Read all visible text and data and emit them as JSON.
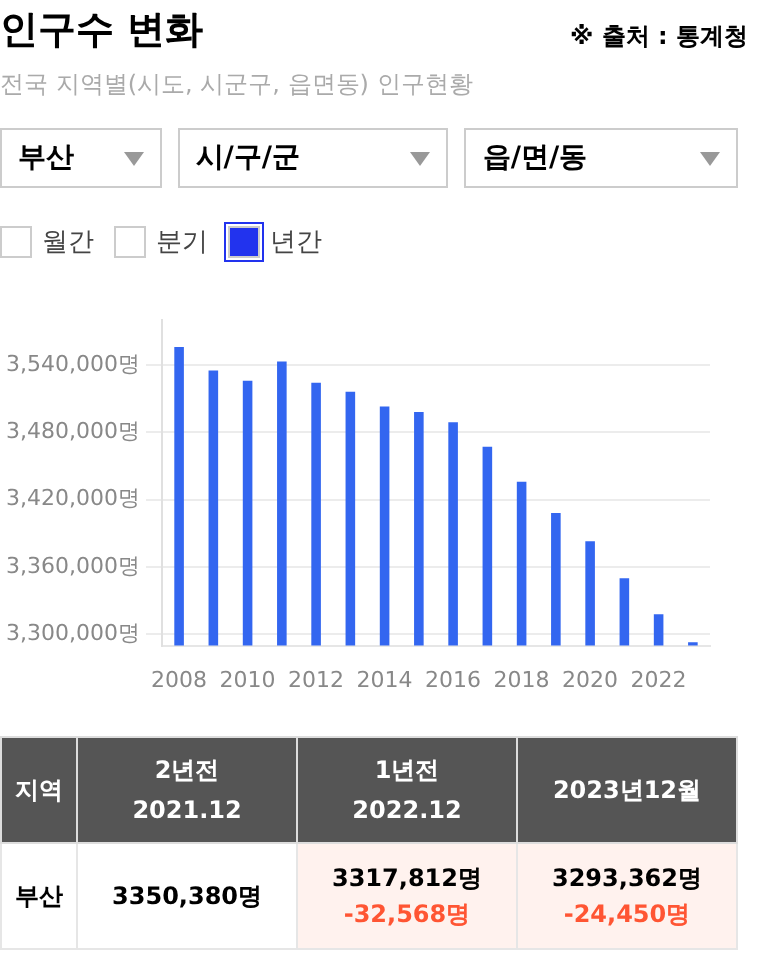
{
  "chart_data": {
    "type": "bar",
    "title": "인구수 변화",
    "subtitle": "전국 지역별(시도, 시군구, 읍면동) 인구현황",
    "categories": [
      "2008",
      null,
      "2010",
      null,
      "2012",
      null,
      "2014",
      null,
      "2016",
      null,
      "2018",
      null,
      "2020",
      null,
      "2022",
      null
    ],
    "values": [
      3556000,
      3535000,
      3526000,
      3543000,
      3524000,
      3516000,
      3503000,
      3498000,
      3489000,
      3467000,
      3436000,
      3408000,
      3383000,
      3350000,
      3318000,
      3293000
    ],
    "color": "#3366f0",
    "ylim": [
      3290000,
      3580000
    ],
    "yticks": [
      {
        "value": 3300000,
        "label": "3,300,000명"
      },
      {
        "value": 3360000,
        "label": "3,360,000명"
      },
      {
        "value": 3420000,
        "label": "3,420,000명"
      },
      {
        "value": 3480000,
        "label": "3,480,000명"
      },
      {
        "value": 3540000,
        "label": "3,540,000명"
      }
    ],
    "grid": "y",
    "legend": false,
    "annotations": [
      "※ 출처 : 통계청",
      "부산",
      "시/구/군",
      "읍/면/동",
      "월간",
      "분기",
      "년간",
      "지역",
      "2년전",
      "2021.12",
      "1년전",
      "2022.12",
      "2023년12월",
      "부산",
      "3350,380명",
      "3317,812명",
      "-32,568명",
      "3293,362명",
      "-24,450명"
    ]
  }
}
